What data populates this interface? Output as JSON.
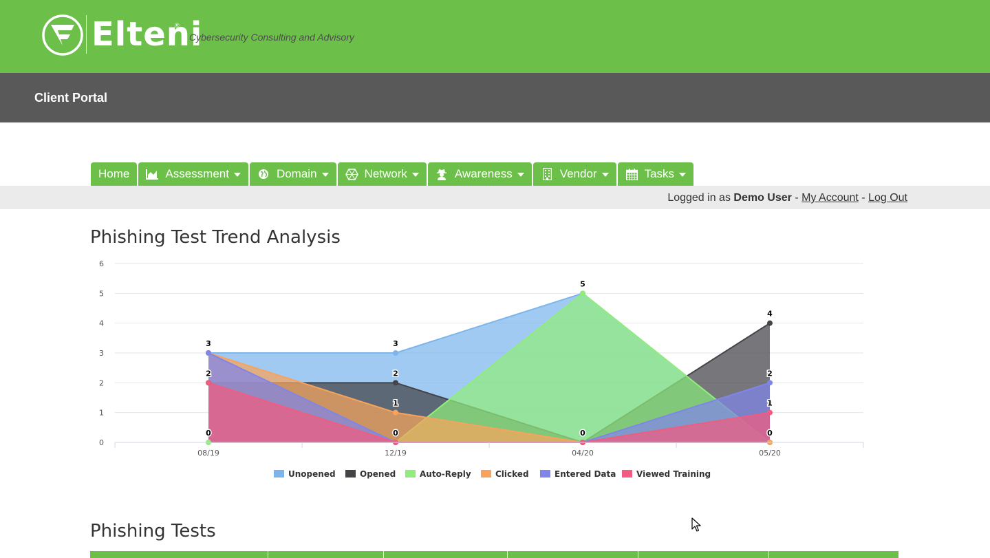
{
  "header": {
    "brand": "Elteni",
    "tagline": "Cybersecurity Consulting and Advisory",
    "registered_mark": "®",
    "logo_icon": "elteni-shield-logo",
    "brand_color": "#6cc04a"
  },
  "portal": {
    "title": "Client Portal"
  },
  "nav": {
    "items": [
      {
        "label": "Home",
        "icon": "",
        "has_dropdown": false
      },
      {
        "label": "Assessment",
        "icon": "area-chart-icon",
        "has_dropdown": true
      },
      {
        "label": "Domain",
        "icon": "globe-icon",
        "has_dropdown": true
      },
      {
        "label": "Network",
        "icon": "network-icon",
        "has_dropdown": true
      },
      {
        "label": "Awareness",
        "icon": "user-secret-icon",
        "has_dropdown": true
      },
      {
        "label": "Vendor",
        "icon": "building-icon",
        "has_dropdown": true
      },
      {
        "label": "Tasks",
        "icon": "calendar-icon",
        "has_dropdown": true
      }
    ]
  },
  "user": {
    "prefix": "Logged in as",
    "name": "Demo User",
    "sep1": "-",
    "my_account": "My Account",
    "sep2": "-",
    "logout": "Log Out"
  },
  "sections": {
    "trend_title": "Phishing Test Trend Analysis",
    "tests_title": "Phishing Tests"
  },
  "chart_data": {
    "type": "area",
    "title": "",
    "xlabel": "",
    "ylabel": "",
    "categories": [
      "08/19",
      "12/19",
      "04/20",
      "05/20"
    ],
    "ylim": [
      0,
      6
    ],
    "yticks": [
      0,
      1,
      2,
      3,
      4,
      5,
      6
    ],
    "grid": true,
    "legend_position": "bottom",
    "series": [
      {
        "name": "Unopened",
        "values": [
          3,
          3,
          5,
          0
        ],
        "color": "#7cb5ec"
      },
      {
        "name": "Opened",
        "values": [
          2,
          2,
          0,
          4
        ],
        "color": "#434348"
      },
      {
        "name": "Auto-Reply",
        "values": [
          0,
          0,
          5,
          0
        ],
        "color": "#90ed7d"
      },
      {
        "name": "Clicked",
        "values": [
          3,
          1,
          0,
          0
        ],
        "color": "#f7a35c"
      },
      {
        "name": "Entered Data",
        "values": [
          3,
          0,
          0,
          2
        ],
        "color": "#8085e9"
      },
      {
        "name": "Viewed Training",
        "values": [
          2,
          0,
          0,
          1
        ],
        "color": "#f15c80"
      }
    ],
    "data_labels": [
      {
        "category": 0,
        "text": "3",
        "value": 3
      },
      {
        "category": 0,
        "text": "2",
        "value": 2
      },
      {
        "category": 0,
        "text": "0",
        "value": 0
      },
      {
        "category": 1,
        "text": "3",
        "value": 3
      },
      {
        "category": 1,
        "text": "2",
        "value": 2
      },
      {
        "category": 1,
        "text": "1",
        "value": 1
      },
      {
        "category": 1,
        "text": "0",
        "value": 0
      },
      {
        "category": 2,
        "text": "5",
        "value": 5
      },
      {
        "category": 2,
        "text": "0",
        "value": 0
      },
      {
        "category": 3,
        "text": "4",
        "value": 4
      },
      {
        "category": 3,
        "text": "2",
        "value": 2
      },
      {
        "category": 3,
        "text": "1",
        "value": 1
      },
      {
        "category": 3,
        "text": "0",
        "value": 0
      }
    ]
  }
}
